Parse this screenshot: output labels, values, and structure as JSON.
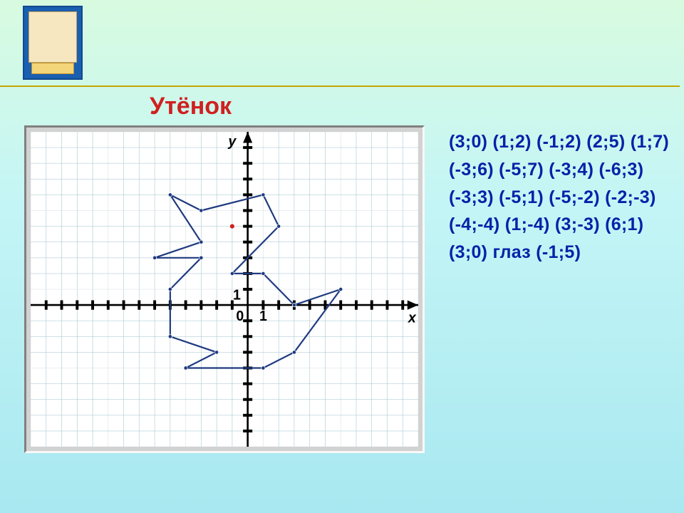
{
  "title": "Утёнок",
  "background_gradient_top": "#d8fbe0",
  "background_gradient_mid": "#c4f5f6",
  "background_gradient_bottom": "#a8e8f0",
  "title_color": "#d02020",
  "title_fontsize": 34,
  "divider_color": "#c3a800",
  "book": {
    "outer_color": "#1a5fb0",
    "inner_color": "#f6e7c0",
    "base_color": "#f3d57a"
  },
  "coords_panel": {
    "color": "#0522a8",
    "fontsize": 25,
    "text": "(3;0) (1;2)   (-1;2) (2;5) (1;7) (-3;6)   (-5;7) (-3;4)  (-6;3)  (-3;3)  (-5;1) (-5;-2) (-2;-3) (-4;-4)  (1;-4) (3;-3) (6;1)  (3;0) глаз (-1;5)"
  },
  "graph": {
    "type": "line",
    "width_cells": 25,
    "height_cells": 20,
    "origin_cell": [
      14,
      11
    ],
    "xlim": [
      -9,
      10
    ],
    "ylim": [
      -8,
      10
    ],
    "grid_color_minor": "#b0cdd6",
    "grid_color_major": "#e0e8ea",
    "background_color": "#ffffff",
    "axis_color": "#000000",
    "tick_step": 1,
    "show_arrows": true,
    "x_label": "x",
    "y_label": "y",
    "zero_label": "0",
    "one_label": "1",
    "label_fontsize": 0.9,
    "polyline": {
      "stroke": "#1f3a80",
      "stroke_width": 0.1,
      "vertex_fill": "#1f3a80",
      "vertex_radius": 0.12,
      "points": [
        [
          3,
          0
        ],
        [
          1,
          2
        ],
        [
          -1,
          2
        ],
        [
          2,
          5
        ],
        [
          1,
          7
        ],
        [
          -3,
          6
        ],
        [
          -5,
          7
        ],
        [
          -3,
          4
        ],
        [
          -6,
          3
        ],
        [
          -3,
          3
        ],
        [
          -5,
          1
        ],
        [
          -5,
          -2
        ],
        [
          -2,
          -3
        ],
        [
          -4,
          -4
        ],
        [
          1,
          -4
        ],
        [
          3,
          -3
        ],
        [
          6,
          1
        ],
        [
          3,
          0
        ]
      ]
    },
    "eye": {
      "point": [
        -1,
        5
      ],
      "fill": "#d02020",
      "radius": 0.14
    }
  }
}
